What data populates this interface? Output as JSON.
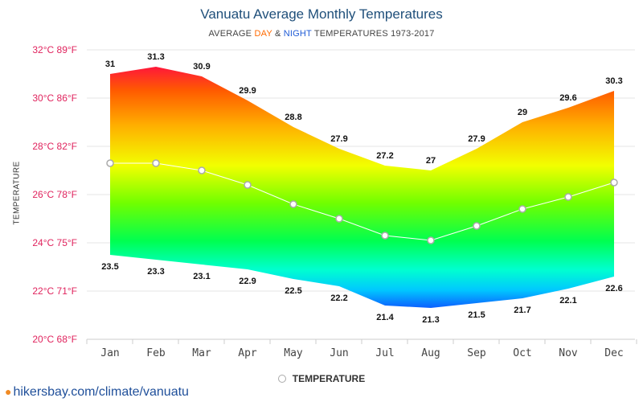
{
  "header": {
    "title": "Vanuatu Average Monthly Temperatures",
    "subtitle_prefix": "AVERAGE ",
    "subtitle_day": "DAY",
    "subtitle_amp": " & ",
    "subtitle_night": "NIGHT",
    "subtitle_suffix": " TEMPERATURES 1973-2017"
  },
  "footer": {
    "site": "hikersbay.com/climate/vanuatu"
  },
  "legend": {
    "label": "TEMPERATURE"
  },
  "colors": {
    "tick_label": "#e0245e",
    "day_label": "#ff6a00",
    "night_label": "#1f5bd6",
    "title": "#1f4f7a",
    "line": "#ffffff",
    "marker_border": "#aaaaaa"
  },
  "chart_data": {
    "type": "area",
    "title": "Vanuatu Average Monthly Temperatures",
    "ylabel": "TEMPERATURE",
    "ylim": [
      20,
      32
    ],
    "y_ticks": [
      {
        "value": 32,
        "label": "32°C 89°F"
      },
      {
        "value": 30,
        "label": "30°C 86°F"
      },
      {
        "value": 28,
        "label": "28°C 82°F"
      },
      {
        "value": 26,
        "label": "26°C 78°F"
      },
      {
        "value": 24,
        "label": "24°C 75°F"
      },
      {
        "value": 22,
        "label": "22°C 71°F"
      },
      {
        "value": 20,
        "label": "20°C 68°F"
      }
    ],
    "categories": [
      "Jan",
      "Feb",
      "Mar",
      "Apr",
      "May",
      "Jun",
      "Jul",
      "Aug",
      "Sep",
      "Oct",
      "Nov",
      "Dec"
    ],
    "day": [
      31,
      31.3,
      30.9,
      29.9,
      28.8,
      27.9,
      27.2,
      27,
      27.9,
      29,
      29.6,
      30.3
    ],
    "night": [
      23.5,
      23.3,
      23.1,
      22.9,
      22.5,
      22.2,
      21.4,
      21.3,
      21.5,
      21.7,
      22.1,
      22.6
    ],
    "series": [
      {
        "name": "TEMPERATURE",
        "values": [
          27.3,
          27.3,
          27.0,
          26.4,
          25.6,
          25.0,
          24.3,
          24.1,
          24.7,
          25.4,
          25.9,
          26.5
        ]
      }
    ],
    "grid": true,
    "legend_position": "bottom"
  }
}
